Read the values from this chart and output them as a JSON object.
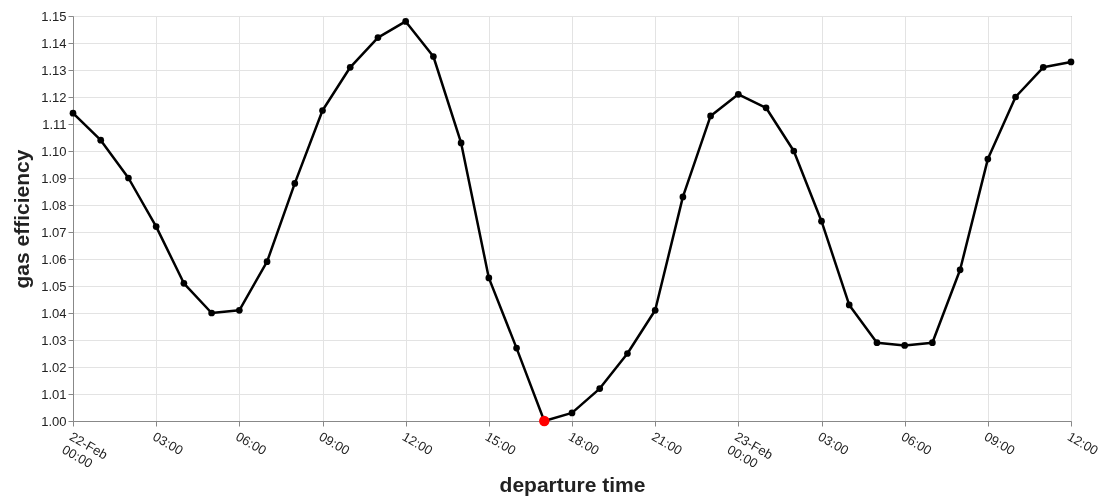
{
  "chart_data": {
    "type": "line",
    "xlabel": "departure time",
    "ylabel": "gas efficiency",
    "x": [
      "--02-22T00:00",
      "--02-22T01:00",
      "--02-22T02:00",
      "--02-22T03:00",
      "--02-22T04:00",
      "--02-22T05:00",
      "--02-22T06:00",
      "--02-22T07:00",
      "--02-22T08:00",
      "--02-22T09:00",
      "--02-22T10:00",
      "--02-22T11:00",
      "--02-22T12:00",
      "--02-22T13:00",
      "--02-22T14:00",
      "--02-22T15:00",
      "--02-22T16:00",
      "--02-22T17:00",
      "--02-22T18:00",
      "--02-22T19:00",
      "--02-22T20:00",
      "--02-22T21:00",
      "--02-22T22:00",
      "--02-22T23:00",
      "--02-23T00:00",
      "--02-23T01:00",
      "--02-23T02:00",
      "--02-23T03:00",
      "--02-23T04:00",
      "--02-23T05:00",
      "--02-23T06:00",
      "--02-23T07:00",
      "--02-23T08:00",
      "--02-23T09:00",
      "--02-23T10:00",
      "--02-23T11:00",
      "--02-23T12:00"
    ],
    "series": [
      {
        "color": "#000000",
        "values": [
          1.114,
          1.104,
          1.09,
          1.072,
          1.051,
          1.04,
          1.041,
          1.059,
          1.088,
          1.115,
          1.131,
          1.142,
          1.148,
          1.135,
          1.103,
          1.053,
          1.027,
          1.0,
          1.003,
          1.012,
          1.025,
          1.041,
          1.083,
          1.113,
          1.121,
          1.116,
          1.1,
          1.074,
          1.043,
          1.029,
          1.028,
          1.029,
          1.056,
          1.097,
          1.12,
          1.131,
          1.133
        ]
      },
      {
        "type": "scatter",
        "color": "#ff0000",
        "x": [
          "--02-22T17:00"
        ],
        "values": [
          1.0
        ]
      }
    ],
    "marker": "circle",
    "line_style": "solid",
    "grid": true,
    "xlim": [
      "--02-22T00:00",
      "--02-23T12:00"
    ],
    "xticks": [
      {
        "value": "--02-22T00:00",
        "label": "22-Feb 00:00"
      },
      {
        "value": "--02-22T03:00",
        "label": "03:00"
      },
      {
        "value": "--02-22T06:00",
        "label": "06:00"
      },
      {
        "value": "--02-22T09:00",
        "label": "09:00"
      },
      {
        "value": "--02-22T12:00",
        "label": "12:00"
      },
      {
        "value": "--02-22T15:00",
        "label": "15:00"
      },
      {
        "value": "--02-22T18:00",
        "label": "18:00"
      },
      {
        "value": "--02-22T21:00",
        "label": "21:00"
      },
      {
        "value": "--02-23T00:00",
        "label": "23-Feb 00:00"
      },
      {
        "value": "--02-23T03:00",
        "label": "03:00"
      },
      {
        "value": "--02-23T06:00",
        "label": "06:00"
      },
      {
        "value": "--02-23T09:00",
        "label": "09:00"
      },
      {
        "value": "--02-23T12:00",
        "label": "12:00"
      }
    ],
    "ylim": [
      1.0,
      1.15
    ],
    "yticks": [
      {
        "value": 1.0,
        "label": "1.00"
      },
      {
        "value": 1.01,
        "label": "1.01"
      },
      {
        "value": 1.02,
        "label": "1.02"
      },
      {
        "value": 1.03,
        "label": "1.03"
      },
      {
        "value": 1.04,
        "label": "1.04"
      },
      {
        "value": 1.05,
        "label": "1.05"
      },
      {
        "value": 1.06,
        "label": "1.06"
      },
      {
        "value": 1.07,
        "label": "1.07"
      },
      {
        "value": 1.08,
        "label": "1.08"
      },
      {
        "value": 1.09,
        "label": "1.09"
      },
      {
        "value": 1.1,
        "label": "1.10"
      },
      {
        "value": 1.11,
        "label": "1.11"
      },
      {
        "value": 1.12,
        "label": "1.12"
      },
      {
        "value": 1.13,
        "label": "1.13"
      },
      {
        "value": 1.14,
        "label": "1.14"
      },
      {
        "value": 1.15,
        "label": "1.15"
      }
    ]
  }
}
